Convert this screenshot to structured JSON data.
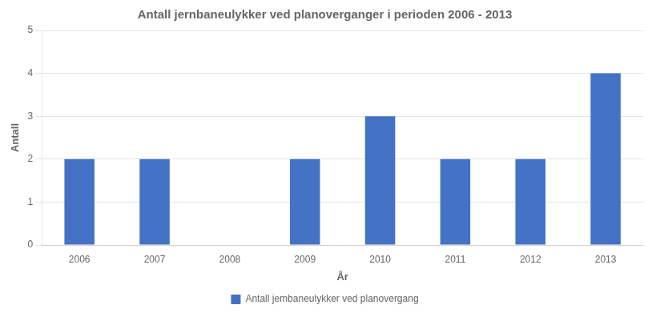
{
  "chart_data": {
    "type": "bar",
    "title": "Antall jernbaneulykker ved planoverganger i perioden 2006 - 2013",
    "xlabel": "År",
    "ylabel": "Antall",
    "categories": [
      "2006",
      "2007",
      "2008",
      "2009",
      "2010",
      "2011",
      "2012",
      "2013"
    ],
    "series": [
      {
        "name": "Antall jembaneulykker ved planovergang",
        "color": "#4472C4",
        "values": [
          2,
          2,
          0,
          2,
          3,
          2,
          2,
          4
        ]
      }
    ],
    "ylim": [
      0,
      5
    ],
    "yticks": [
      0,
      1,
      2,
      3,
      4,
      5
    ],
    "grid": true,
    "legend": "bottom"
  }
}
